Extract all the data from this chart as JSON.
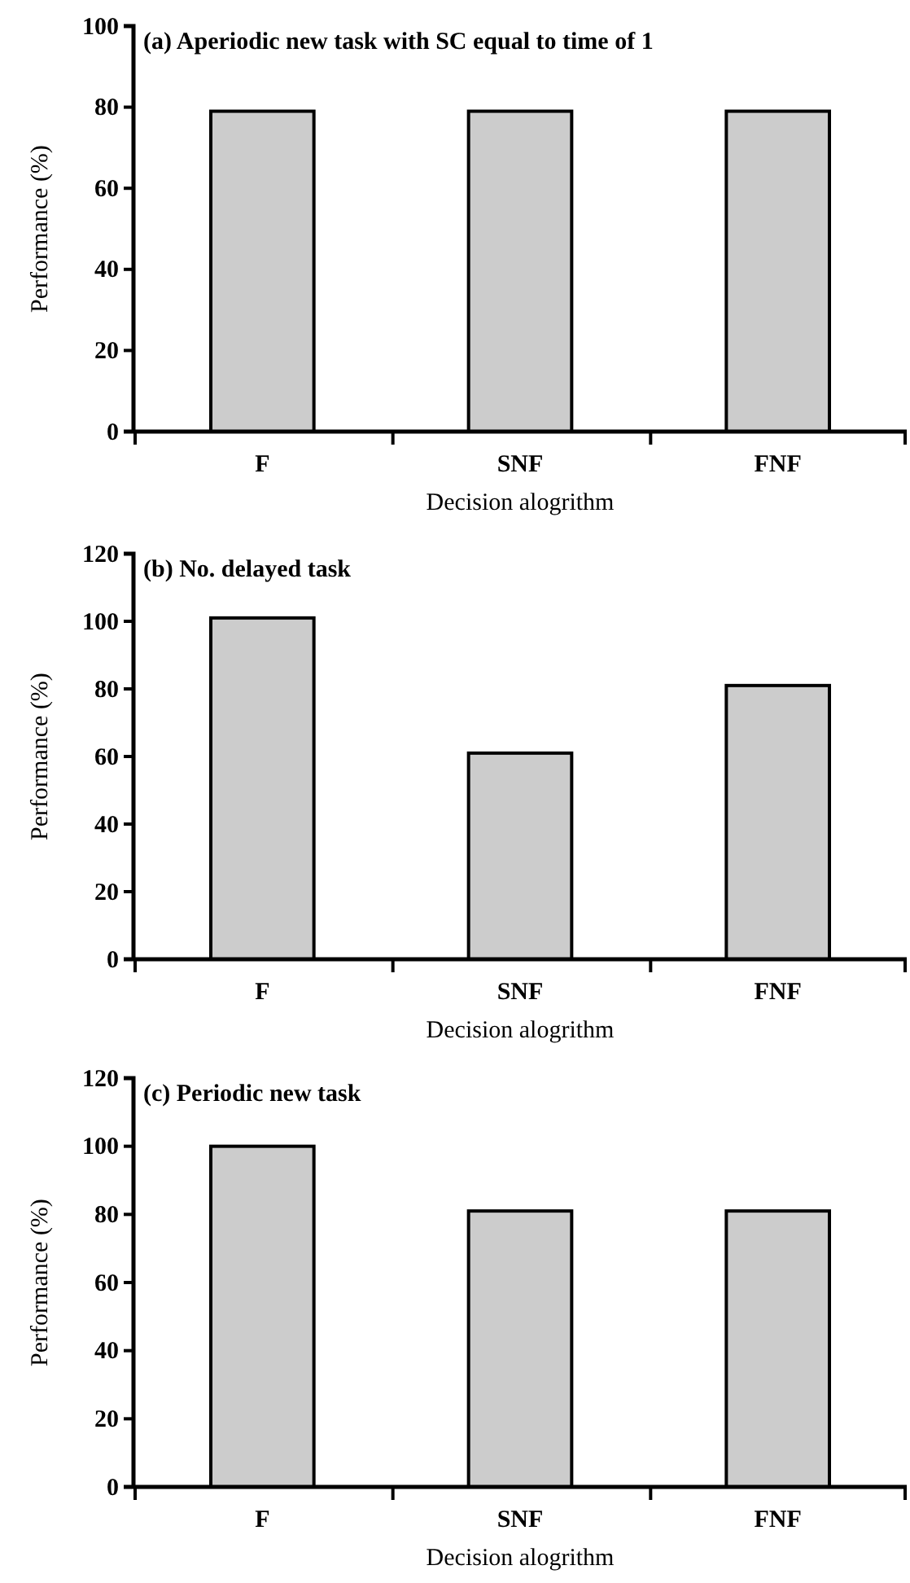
{
  "chart_data": [
    {
      "type": "bar",
      "title": "(a) Aperiodic new task with SC equal to time of 1",
      "xlabel": "Decision alogrithm",
      "ylabel": "Performance (%)",
      "categories": [
        "F",
        "SNF",
        "FNF"
      ],
      "values": [
        79,
        79,
        79
      ],
      "color": "#cccccc",
      "ylim": [
        0,
        100
      ],
      "yticks": [
        0,
        20,
        40,
        60,
        80,
        100
      ],
      "grid": false
    },
    {
      "type": "bar",
      "title": "(b) No. delayed task",
      "xlabel": "Decision alogrithm",
      "ylabel": "Performance (%)",
      "categories": [
        "F",
        "SNF",
        "FNF"
      ],
      "values": [
        101,
        61,
        81
      ],
      "color": "#cccccc",
      "ylim": [
        0,
        120
      ],
      "yticks": [
        0,
        20,
        40,
        60,
        80,
        100,
        120
      ],
      "grid": false
    },
    {
      "type": "bar",
      "title": "(c) Periodic new task",
      "xlabel": "Decision alogrithm",
      "ylabel": "Performance (%)",
      "categories": [
        "F",
        "SNF",
        "FNF"
      ],
      "values": [
        100,
        81,
        81
      ],
      "color": "#cccccc",
      "ylim": [
        0,
        120
      ],
      "yticks": [
        0,
        20,
        40,
        60,
        80,
        100,
        120
      ],
      "grid": false
    }
  ]
}
